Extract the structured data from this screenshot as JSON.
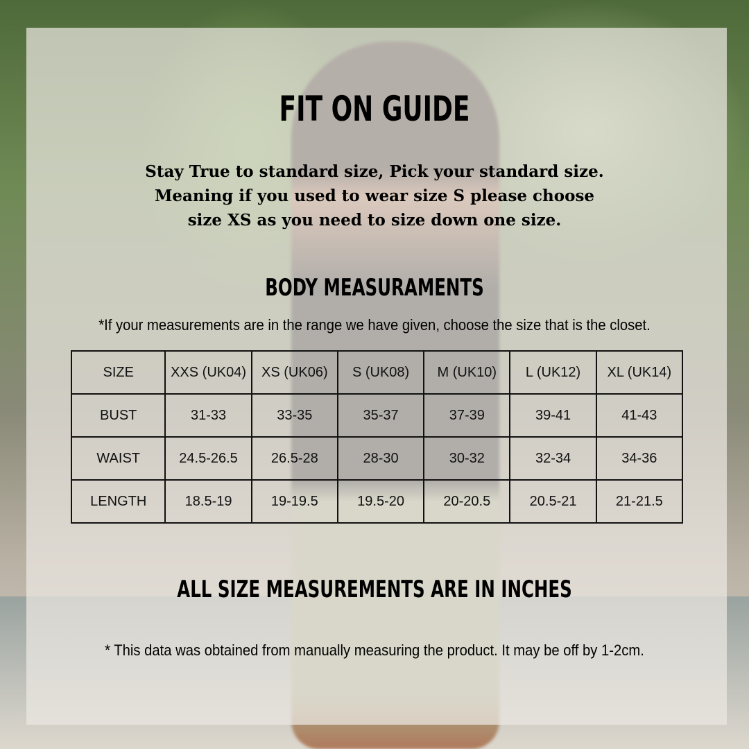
{
  "title": "FIT ON GUIDE",
  "intro": [
    "Stay True to standard size, Pick your standard size.",
    "Meaning if you used to wear size S please choose",
    "size XS as you need to size down one size."
  ],
  "section_title": "BODY MEASURAMENTS",
  "range_note": "*If your measurements are in the range we have given, choose the size that is the closet.",
  "table": {
    "header": [
      "SIZE",
      "XXS (UK04)",
      "XS (UK06)",
      "S (UK08)",
      "M (UK10)",
      "L (UK12)",
      "XL (UK14)"
    ],
    "rows": [
      [
        "BUST",
        "31-33",
        "33-35",
        "35-37",
        "37-39",
        "39-41",
        "41-43"
      ],
      [
        "WAIST",
        "24.5-26.5",
        "26.5-28",
        "28-30",
        "30-32",
        "32-34",
        "34-36"
      ],
      [
        "LENGTH",
        "18.5-19",
        "19-19.5",
        "19.5-20",
        "20-20.5",
        "20.5-21",
        "21-21.5"
      ]
    ]
  },
  "units_note": "ALL SIZE MEASUREMENTS ARE IN INCHES",
  "disclaimer": "* This data was obtained from manually measuring the product. It may be off by 1-2cm."
}
